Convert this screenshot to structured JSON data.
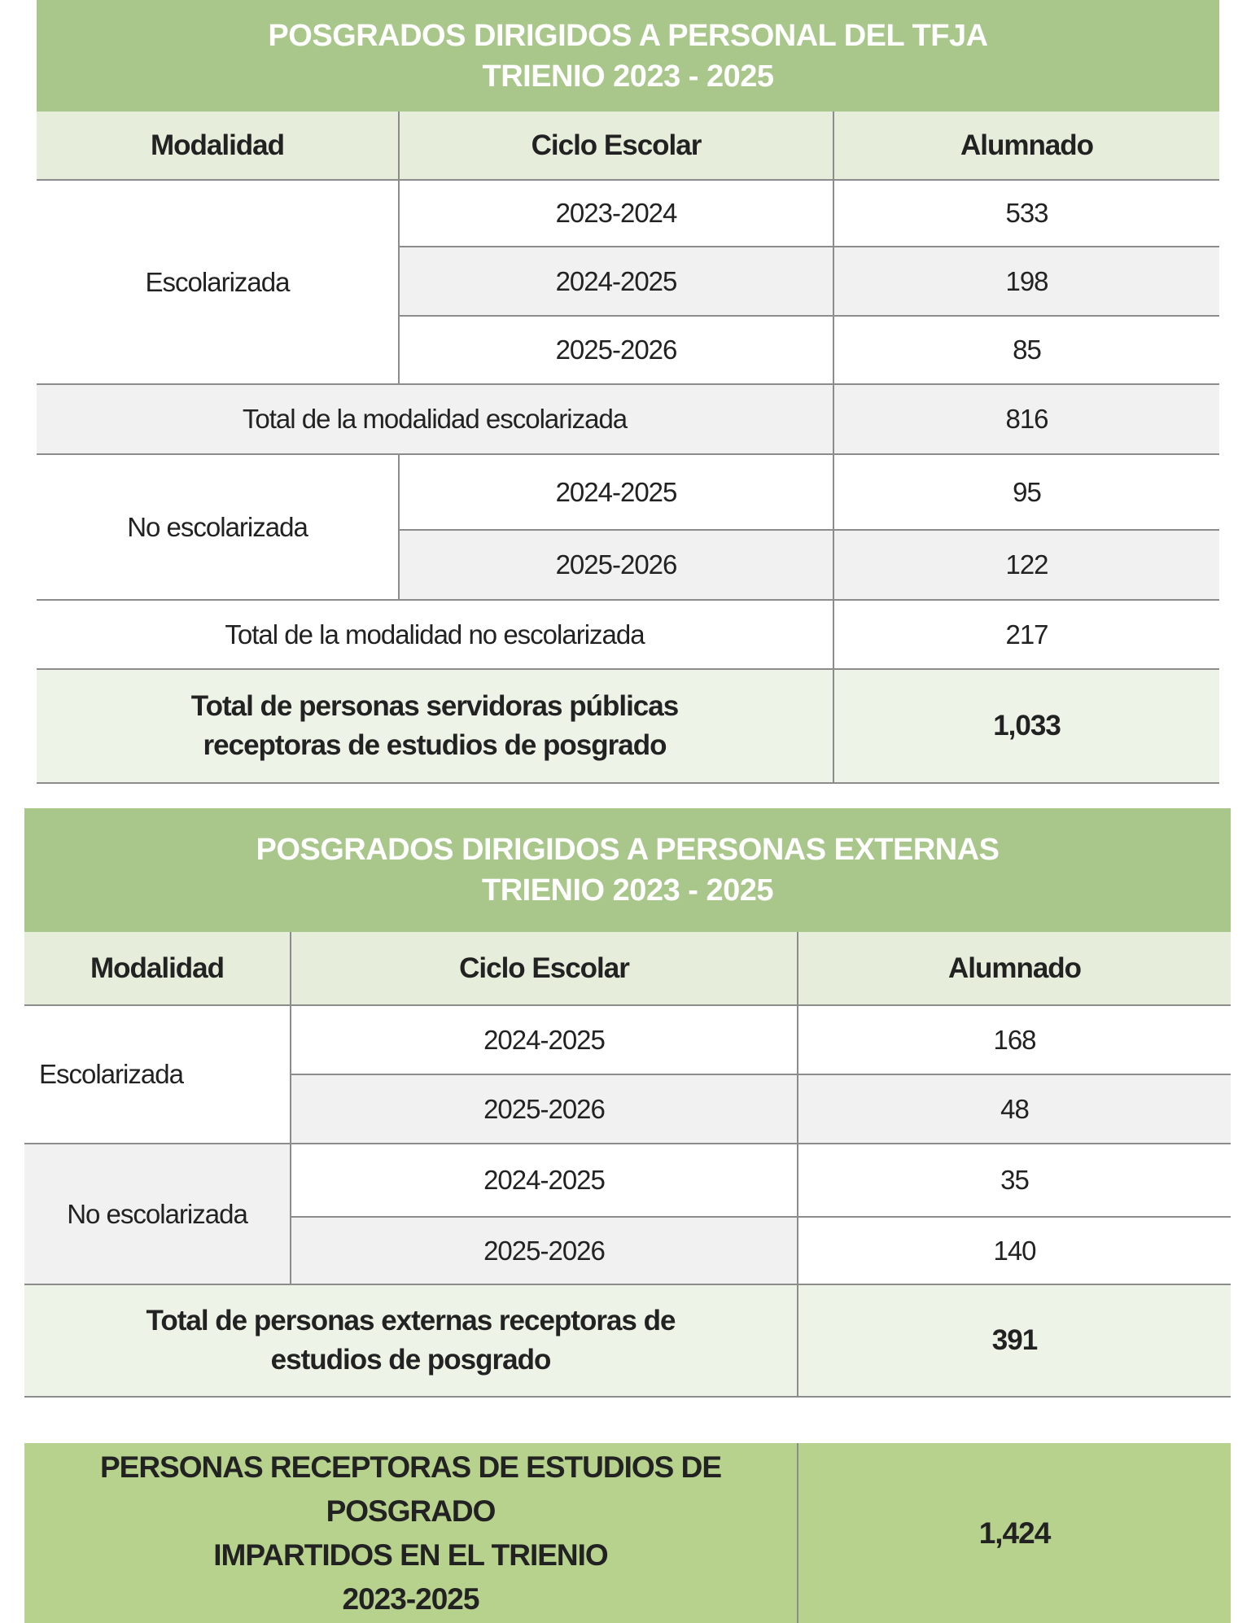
{
  "table1": {
    "title_line1": "POSGRADOS DIRIGIDOS A PERSONAL DEL TFJA",
    "title_line2": "TRIENIO 2023 - 2025",
    "headers": [
      "Modalidad",
      "Ciclo Escolar",
      "Alumnado"
    ],
    "escolarizada": {
      "label": "Escolarizada",
      "rows": [
        {
          "ciclo": "2023-2024",
          "alumnado": "533"
        },
        {
          "ciclo": "2024-2025",
          "alumnado": "198"
        },
        {
          "ciclo": "2025-2026",
          "alumnado": "85"
        }
      ],
      "total_label": "Total de la modalidad escolarizada",
      "total": "816"
    },
    "no_escolarizada": {
      "label": "No escolarizada",
      "rows": [
        {
          "ciclo": "2024-2025",
          "alumnado": "95"
        },
        {
          "ciclo": "2025-2026",
          "alumnado": "122"
        }
      ],
      "total_label": "Total de la modalidad no escolarizada",
      "total": "217"
    },
    "grand_total_line1": "Total de personas servidoras públicas",
    "grand_total_line2": "receptoras de estudios de posgrado",
    "grand_total": "1,033"
  },
  "table2": {
    "title_line1": "POSGRADOS DIRIGIDOS A PERSONAS EXTERNAS",
    "title_line2": "TRIENIO 2023 - 2025",
    "headers": [
      "Modalidad",
      "Ciclo Escolar",
      "Alumnado"
    ],
    "escolarizada": {
      "label": "Escolarizada",
      "rows": [
        {
          "ciclo": "2024-2025",
          "alumnado": "168"
        },
        {
          "ciclo": "2025-2026",
          "alumnado": "48"
        }
      ]
    },
    "no_escolarizada": {
      "label": "No escolarizada",
      "rows": [
        {
          "ciclo": "2024-2025",
          "alumnado": "35"
        },
        {
          "ciclo": "2025-2026",
          "alumnado": "140"
        }
      ]
    },
    "grand_total_line1": "Total de personas externas receptoras de",
    "grand_total_line2": "estudios de posgrado",
    "grand_total": "391"
  },
  "summary": {
    "line1": "PERSONAS RECEPTORAS DE ESTUDIOS DE POSGRADO",
    "line2": "IMPARTIDOS EN EL TRIENIO",
    "line3": "2023-2025",
    "total": "1,424"
  }
}
